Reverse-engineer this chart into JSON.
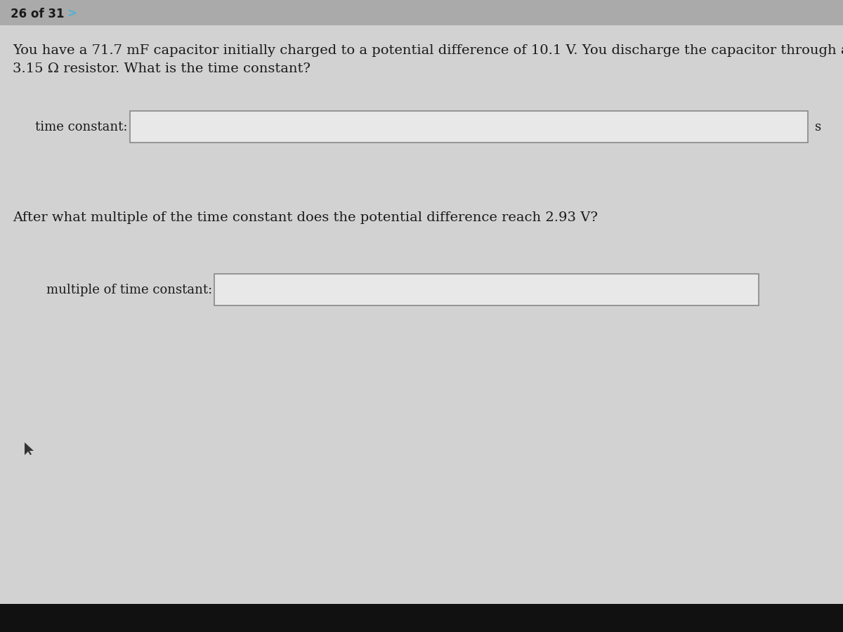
{
  "page_indicator": "26 of 31",
  "arrow": ">",
  "bg_main": "#d2d2d2",
  "bg_header": "#aaaaaa",
  "bg_content": "#d8d8d8",
  "box_fill": "#e8e8e8",
  "box_edge": "#888888",
  "text_color": "#1a1a1a",
  "cyan_color": "#4db3d4",
  "black_bar": "#111111",
  "line1": "You have a 71.7 mF capacitor initially charged to a potential difference of 10.1 V. You discharge the capacitor through a",
  "line2": "3.15 Ω resistor. What is the time constant?",
  "label1": "time constant:",
  "unit1": "s",
  "question2": "After what multiple of the time constant does the potential difference reach 2.93 V?",
  "label2": "multiple of time constant:",
  "font_size_header": 12,
  "font_size_body": 14,
  "font_size_label": 13
}
